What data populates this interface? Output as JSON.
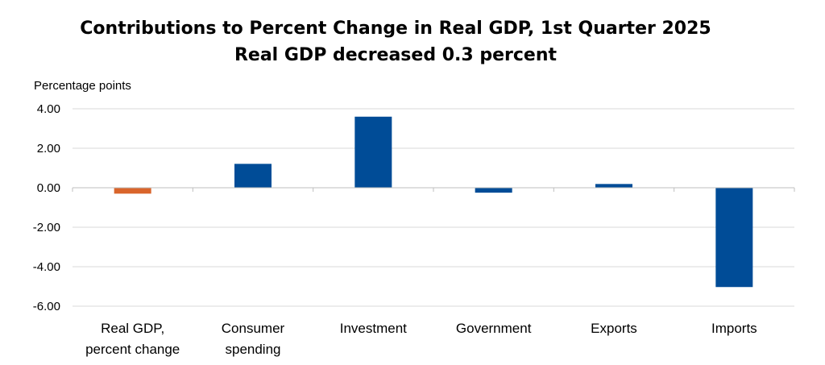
{
  "chart_data": {
    "type": "bar",
    "title": "Contributions to Percent Change in Real GDP, 1st Quarter 2025",
    "subtitle": "Real GDP decreased 0.3 percent",
    "ylabel": "Percentage points",
    "xlabel": "",
    "ylim": [
      -6.0,
      4.0
    ],
    "yticks": [
      4.0,
      2.0,
      0.0,
      -2.0,
      -4.0,
      -6.0
    ],
    "ytick_labels": [
      "4.00",
      "2.00",
      "0.00",
      "-2.00",
      "-4.00",
      "-6.00"
    ],
    "grid": true,
    "categories": [
      [
        "Real GDP,",
        "percent change"
      ],
      [
        "Consumer",
        "spending"
      ],
      [
        "Investment"
      ],
      [
        "Government"
      ],
      [
        "Exports"
      ],
      [
        "Imports"
      ]
    ],
    "values": [
      -0.3,
      1.21,
      3.6,
      -0.25,
      0.19,
      -5.03
    ],
    "colors": [
      "#d9652b",
      "#004c97",
      "#004c97",
      "#004c97",
      "#004c97",
      "#004c97"
    ]
  }
}
